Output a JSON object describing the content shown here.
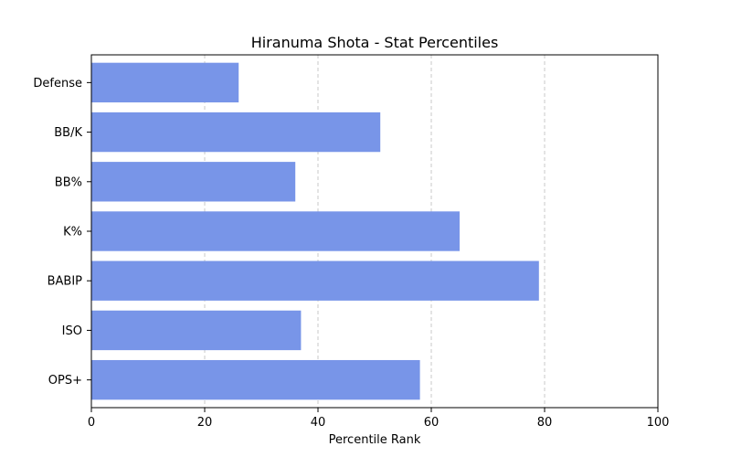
{
  "chart_data": {
    "type": "bar",
    "orientation": "horizontal",
    "title": "Hiranuma Shota - Stat Percentiles",
    "xlabel": "Percentile Rank",
    "ylabel": "",
    "xlim": [
      0,
      100
    ],
    "xticks": [
      0,
      20,
      40,
      60,
      80,
      100
    ],
    "grid": "x-dashed",
    "categories": [
      "Defense",
      "BB/K",
      "BB%",
      "K%",
      "BABIP",
      "ISO",
      "OPS+"
    ],
    "values": [
      26,
      51,
      36,
      65,
      79,
      37,
      58
    ],
    "bar_color": "#7895e8"
  }
}
